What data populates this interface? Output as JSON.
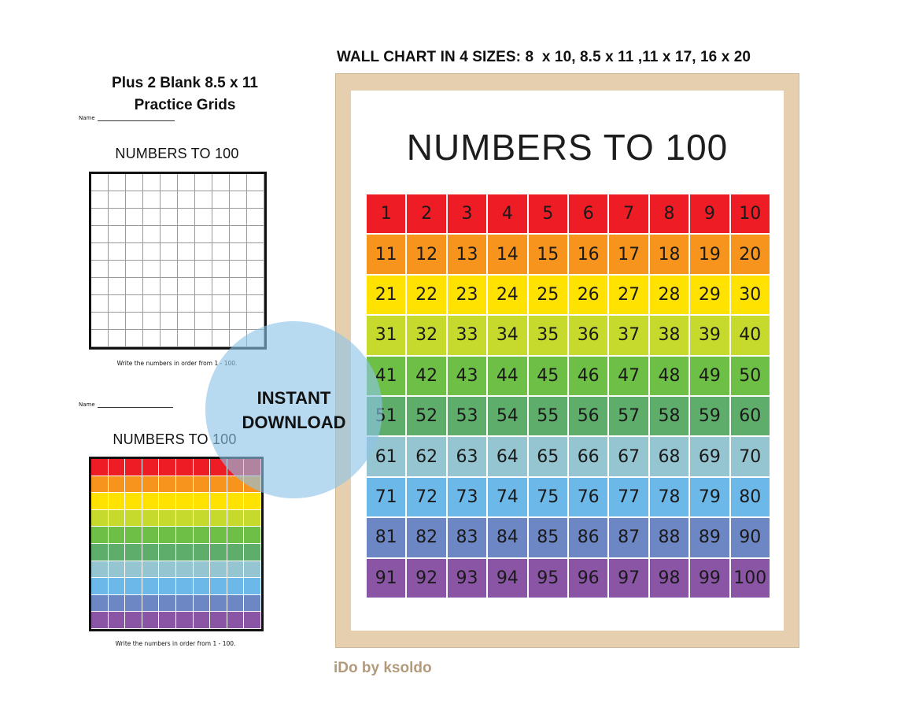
{
  "header": "WALL CHART IN 4 SIZES: 8  x 10, 8.5 x 11 ,11 x 17, 16 x 20",
  "left_title": [
    "Plus 2 Blank 8.5 x 11",
    "Practice Grids"
  ],
  "worksheet_blank": {
    "name_label": "Name",
    "title": "NUMBERS TO 100",
    "caption": "Write the numbers in order from 1 - 100."
  },
  "worksheet_color": {
    "name_label": "Name",
    "title": "NUMBERS TO 100",
    "caption": "Write the numbers in order from 1 - 100."
  },
  "badge": [
    "INSTANT",
    "DOWNLOAD"
  ],
  "wall_chart": {
    "title": "NUMBERS TO 100",
    "row_colors": [
      "#ee1c25",
      "#f7941d",
      "#ffe200",
      "#c5da2c",
      "#6ebf45",
      "#5fad6b",
      "#95c5d0",
      "#6cb8e8",
      "#6d86c4",
      "#8b55a6"
    ]
  },
  "brand": "iDo by ksoldo"
}
